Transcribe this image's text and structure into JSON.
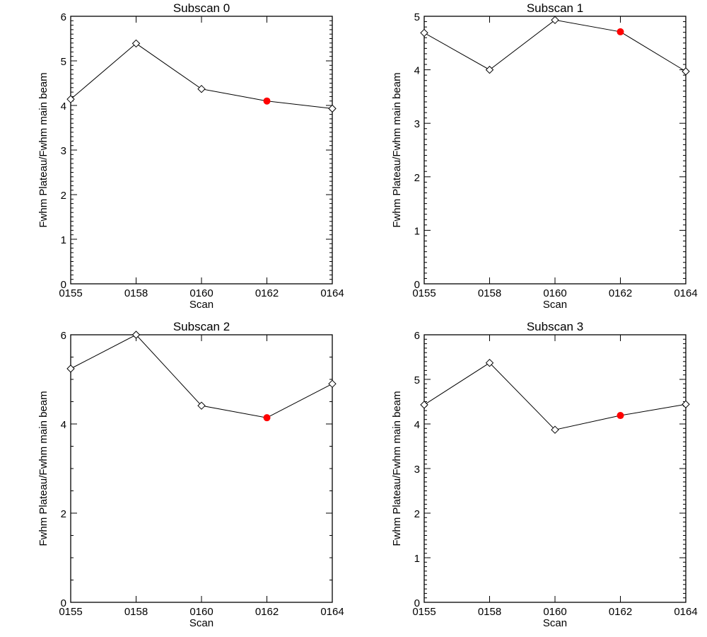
{
  "chart_data": [
    {
      "type": "line",
      "title": "Subscan 0",
      "xlabel": "Scan",
      "ylabel": "Fwhm Plateau/Fwhm main beam",
      "categories": [
        "0155",
        "0158",
        "0160",
        "0162",
        "0164"
      ],
      "values": [
        4.14,
        5.39,
        4.37,
        4.1,
        3.93
      ],
      "highlight_index": 3,
      "ylim": [
        0,
        6
      ],
      "yticks": [
        "0",
        "1",
        "2",
        "3",
        "4",
        "5",
        "6"
      ],
      "ymajor": 1,
      "yminor": 0.1
    },
    {
      "type": "line",
      "title": "Subscan 1",
      "xlabel": "Scan",
      "ylabel": "Fwhm Plateau/Fwhm main beam",
      "categories": [
        "0155",
        "0158",
        "0160",
        "0162",
        "0164"
      ],
      "values": [
        4.69,
        4.0,
        4.93,
        4.71,
        3.97
      ],
      "highlight_index": 3,
      "ylim": [
        0,
        5
      ],
      "yticks": [
        "0",
        "1",
        "2",
        "3",
        "4",
        "5"
      ],
      "ymajor": 1,
      "yminor": 0.1
    },
    {
      "type": "line",
      "title": "Subscan 2",
      "xlabel": "Scan",
      "ylabel": "Fwhm Plateau/Fwhm main beam",
      "categories": [
        "0155",
        "0158",
        "0160",
        "0162",
        "0164"
      ],
      "values": [
        5.24,
        6.0,
        4.41,
        4.14,
        4.9
      ],
      "highlight_index": 3,
      "ylim": [
        0,
        6
      ],
      "yticks": [
        "0",
        "2",
        "4",
        "6"
      ],
      "ymajor": 2,
      "yminor": 0.5
    },
    {
      "type": "line",
      "title": "Subscan 3",
      "xlabel": "Scan",
      "ylabel": "Fwhm Plateau/Fwhm main beam",
      "categories": [
        "0155",
        "0158",
        "0160",
        "0162",
        "0164"
      ],
      "values": [
        4.43,
        5.37,
        3.87,
        4.19,
        4.44
      ],
      "highlight_index": 3,
      "ylim": [
        0,
        6
      ],
      "yticks": [
        "0",
        "1",
        "2",
        "3",
        "4",
        "5",
        "6"
      ],
      "ymajor": 1,
      "yminor": 0.1
    }
  ],
  "colors": {
    "line": "#000000",
    "highlight": "#ff0000"
  }
}
